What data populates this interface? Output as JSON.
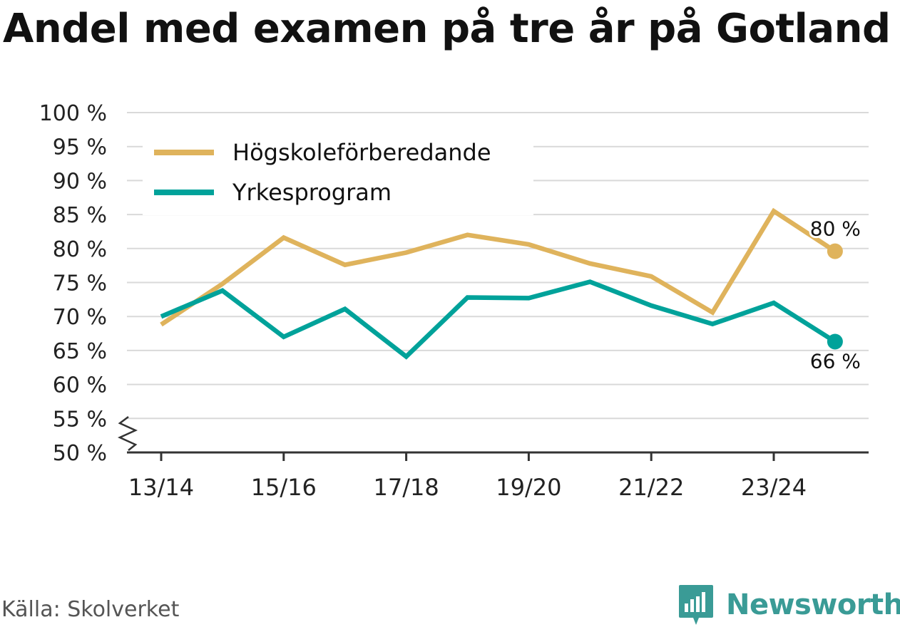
{
  "title": "Andel med examen på tre år på Gotland",
  "source": "Källa: Skolverket",
  "brand": {
    "name": "Newsworthy",
    "icon": "newsworthy-bar-chart-logo-icon",
    "color": "#3a9b96"
  },
  "colors": {
    "Högskoleförberedande": "#dfb35c",
    "Yrkesprogram": "#00a29a",
    "grid": "#d9d9d9",
    "axis": "#333333"
  },
  "chart_data": {
    "type": "line",
    "x": [
      "13/14",
      "14/15",
      "15/16",
      "16/17",
      "17/18",
      "18/19",
      "19/20",
      "20/21",
      "21/22",
      "22/23",
      "23/24",
      "24/25"
    ],
    "x_tick_labels": [
      "13/14",
      "15/16",
      "17/18",
      "19/20",
      "21/22",
      "23/24"
    ],
    "y_tick_labels": [
      "100 %",
      "95 %",
      "90 %",
      "85 %",
      "80 %",
      "75 %",
      "70 %",
      "65 %",
      "60 %",
      "55 %",
      "50 %"
    ],
    "ylim": [
      50,
      100
    ],
    "y_axis_break": true,
    "grid": true,
    "legend_position": "top-left",
    "series": [
      {
        "name": "Högskoleförberedande",
        "values": [
          68.8,
          74.8,
          81.6,
          77.6,
          79.4,
          82.0,
          80.6,
          77.8,
          75.9,
          70.6,
          85.5,
          79.6
        ],
        "end_label": "80 %"
      },
      {
        "name": "Yrkesprogram",
        "values": [
          70.0,
          73.8,
          67.0,
          71.1,
          64.1,
          72.8,
          72.7,
          75.1,
          71.6,
          68.9,
          72.0,
          66.3
        ],
        "end_label": "66 %"
      }
    ]
  }
}
